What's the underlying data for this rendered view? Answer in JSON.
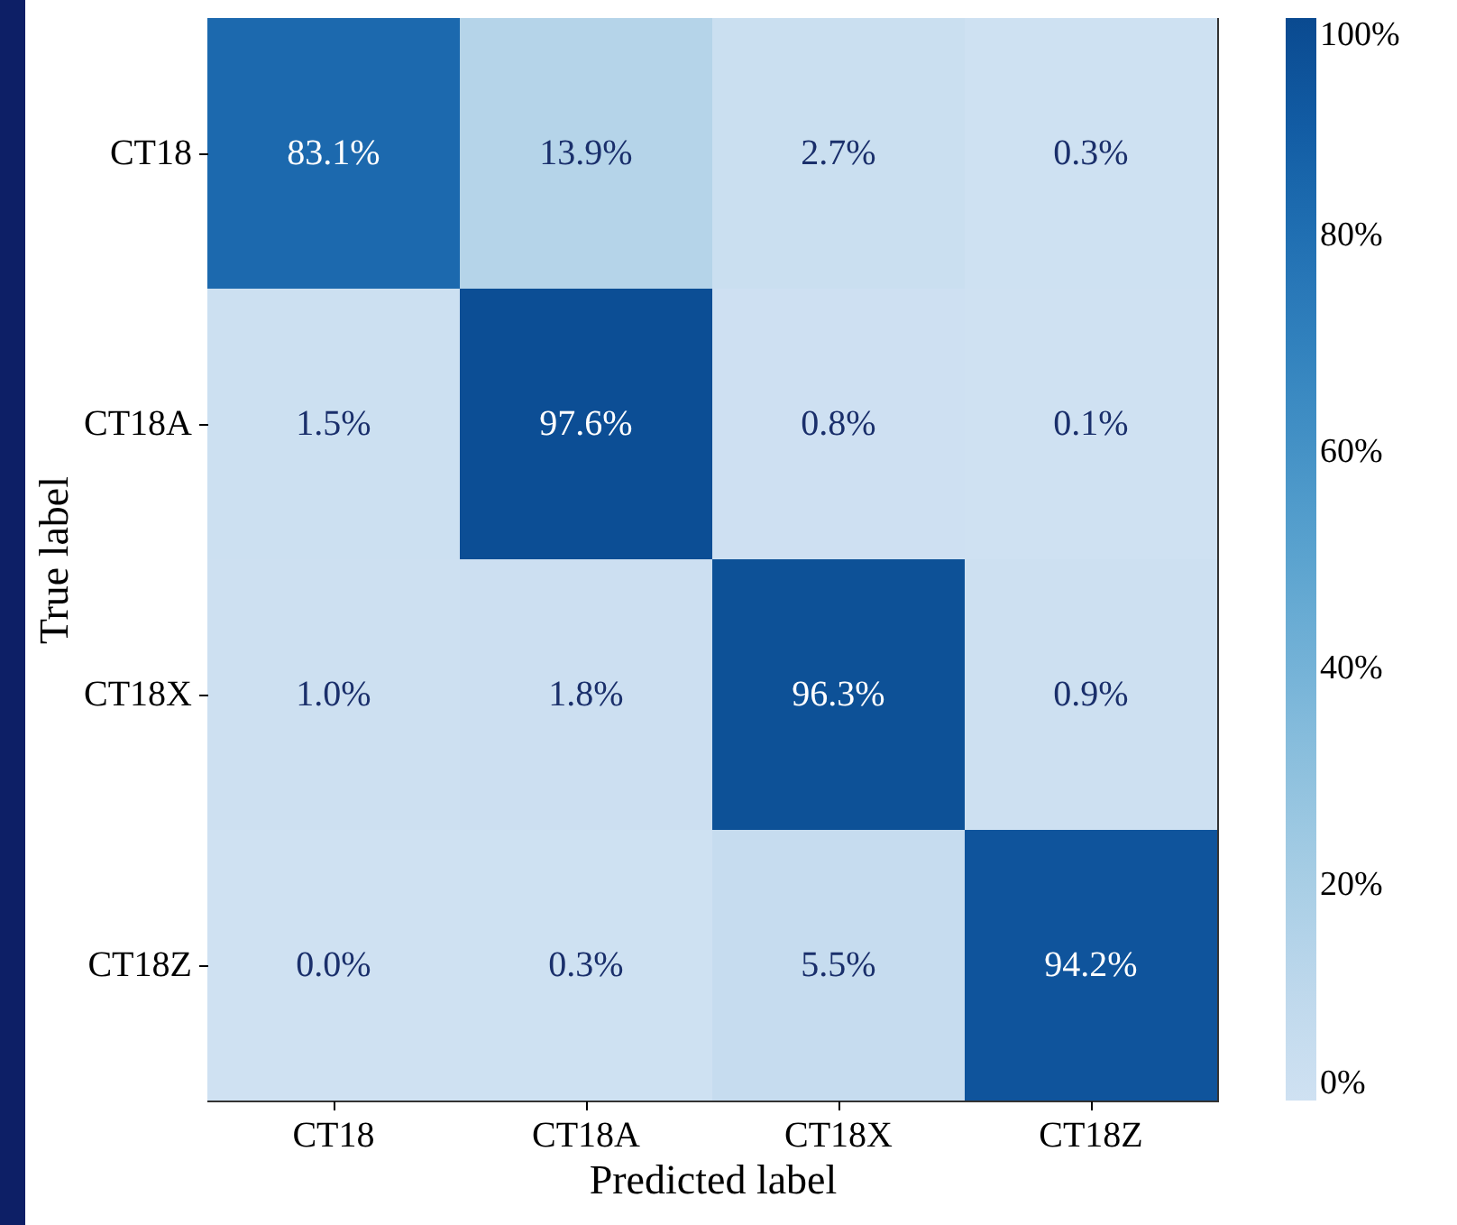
{
  "chart_data": {
    "type": "heatmap",
    "xlabel": "Predicted label",
    "ylabel": "True label",
    "categories": [
      "CT18",
      "CT18A",
      "CT18X",
      "CT18Z"
    ],
    "y_categories": [
      "CT18",
      "CT18A",
      "CT18X",
      "CT18Z"
    ],
    "cells": [
      [
        83.1,
        13.9,
        2.7,
        0.3
      ],
      [
        1.5,
        97.6,
        0.8,
        0.1
      ],
      [
        1.0,
        1.8,
        96.3,
        0.9
      ],
      [
        0.0,
        0.3,
        5.5,
        94.2
      ]
    ],
    "cell_labels": [
      [
        "83.1%",
        "13.9%",
        "2.7%",
        "0.3%"
      ],
      [
        "1.5%",
        "97.6%",
        "0.8%",
        "0.1%"
      ],
      [
        "1.0%",
        "1.8%",
        "96.3%",
        "0.9%"
      ],
      [
        "0.0%",
        "0.3%",
        "5.5%",
        "94.2%"
      ]
    ],
    "clim": [
      0,
      100
    ],
    "cticks": [
      {
        "value": 0,
        "label": "0%"
      },
      {
        "value": 20,
        "label": "20%"
      },
      {
        "value": 40,
        "label": "40%"
      },
      {
        "value": 60,
        "label": "60%"
      },
      {
        "value": 80,
        "label": "80%"
      },
      {
        "value": 100,
        "label": "100%"
      }
    ]
  }
}
